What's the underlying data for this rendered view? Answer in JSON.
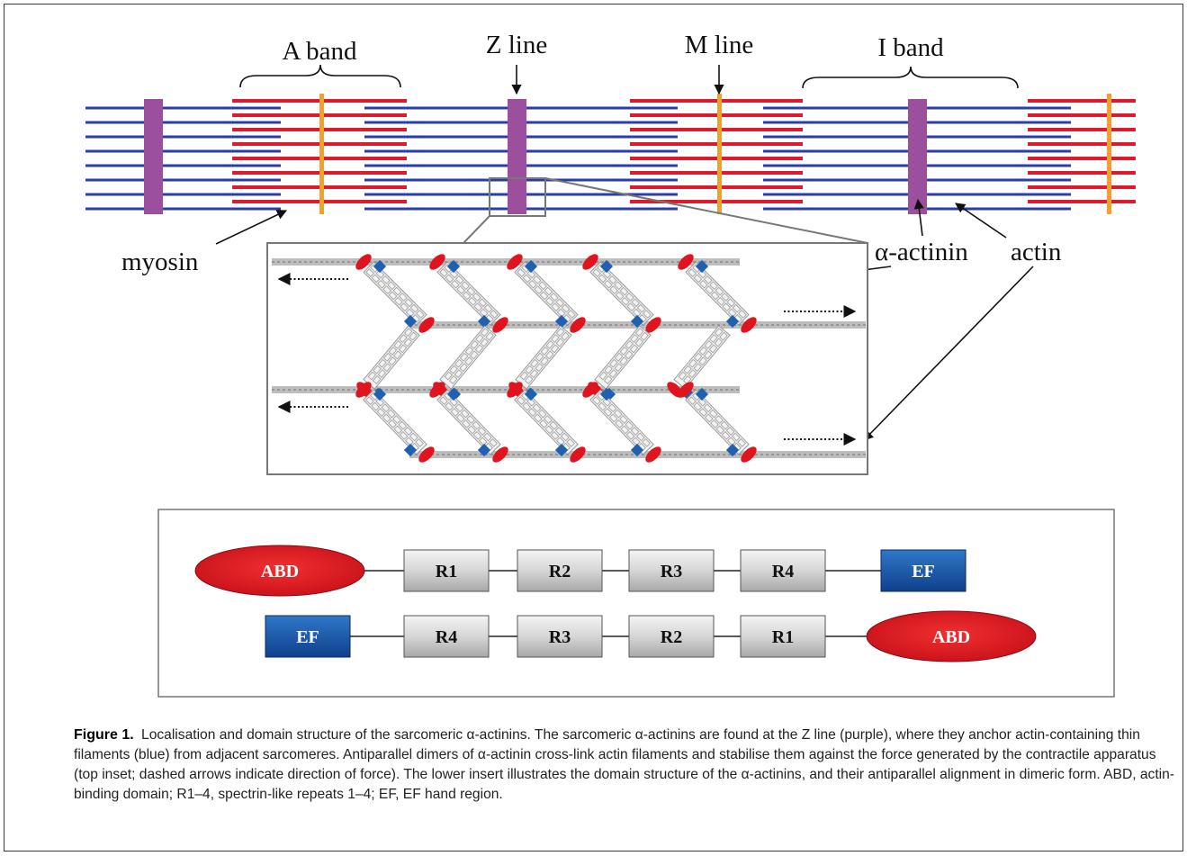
{
  "labels": {
    "a_band": "A band",
    "z_line": "Z line",
    "m_line": "M line",
    "i_band": "I band",
    "myosin": "myosin",
    "alpha_actinin": "α-actinin",
    "actin": "actin"
  },
  "domains": {
    "top_row": [
      "ABD",
      "R1",
      "R2",
      "R3",
      "R4",
      "EF"
    ],
    "bottom_row": [
      "EF",
      "R4",
      "R3",
      "R2",
      "R1",
      "ABD"
    ]
  },
  "caption": {
    "figure_number": "Figure 1.",
    "text": "Localisation and domain structure of the sarcomeric α-actinins. The sarcomeric α-actinins are found at the Z line (purple), where they anchor actin-containing thin filaments (blue) from adjacent sarcomeres. Antiparallel dimers of α-actinin cross-link actin filaments and stabilise them against the force generated by the contractile apparatus (top inset; dashed arrows indicate direction of force). The lower insert illustrates the domain structure of the α-actinins, and their antiparallel alignment in dimeric form. ABD, actin-binding domain; R1–4, spectrin-like repeats 1–4; EF, EF hand region."
  },
  "colors": {
    "actin": "#2b3ea8",
    "myosin": "#e01a2a",
    "z_line": "#9b4f9c",
    "m_line": "#f0a030",
    "abd": "#e0141e",
    "ef": "#2060b0",
    "repeat": "#d8d8d8"
  }
}
